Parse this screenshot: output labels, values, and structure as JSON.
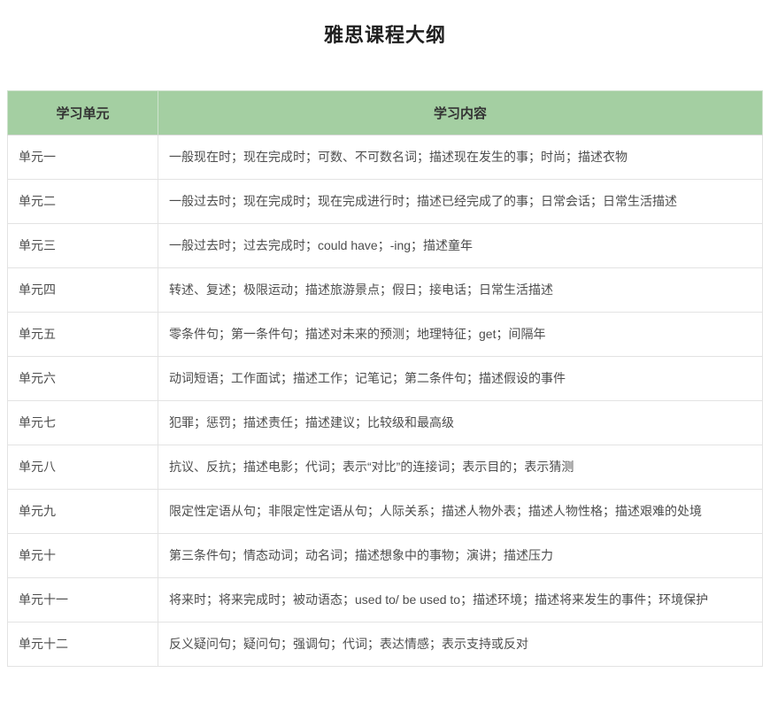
{
  "page": {
    "title": "雅思课程大纲"
  },
  "colors": {
    "header_bg": "#a4cfa2",
    "header_text": "#333333",
    "body_text": "#4d4d4d",
    "border": "#e3e3e3"
  },
  "table": {
    "headers": {
      "unit": "学习单元",
      "content": "学习内容"
    },
    "rows": [
      {
        "unit": "单元一",
        "content": "一般现在时；现在完成时；可数、不可数名词；描述现在发生的事；时尚；描述衣物"
      },
      {
        "unit": "单元二",
        "content": "一般过去时；现在完成时；现在完成进行时；描述已经完成了的事；日常会话；日常生活描述"
      },
      {
        "unit": "单元三",
        "content": "一般过去时；过去完成时；could have；-ing；描述童年"
      },
      {
        "unit": "单元四",
        "content": "转述、复述；极限运动；描述旅游景点；假日；接电话；日常生活描述"
      },
      {
        "unit": "单元五",
        "content": "零条件句；第一条件句；描述对未来的预测；地理特征；get；间隔年"
      },
      {
        "unit": "单元六",
        "content": "动词短语；工作面试；描述工作；记笔记；第二条件句；描述假设的事件"
      },
      {
        "unit": "单元七",
        "content": "犯罪；惩罚；描述责任；描述建议；比较级和最高级"
      },
      {
        "unit": "单元八",
        "content": "抗议、反抗；描述电影；代词；表示“对比”的连接词；表示目的；表示猜测"
      },
      {
        "unit": "单元九",
        "content": "限定性定语从句；非限定性定语从句；人际关系；描述人物外表；描述人物性格；描述艰难的处境"
      },
      {
        "unit": "单元十",
        "content": "第三条件句；情态动词；动名词；描述想象中的事物；演讲；描述压力"
      },
      {
        "unit": "单元十一",
        "content": "将来时；将来完成时；被动语态；used to/ be used to；描述环境；描述将来发生的事件；环境保护"
      },
      {
        "unit": "单元十二",
        "content": "反义疑问句；疑问句；强调句；代词；表达情感；表示支持或反对"
      }
    ]
  }
}
